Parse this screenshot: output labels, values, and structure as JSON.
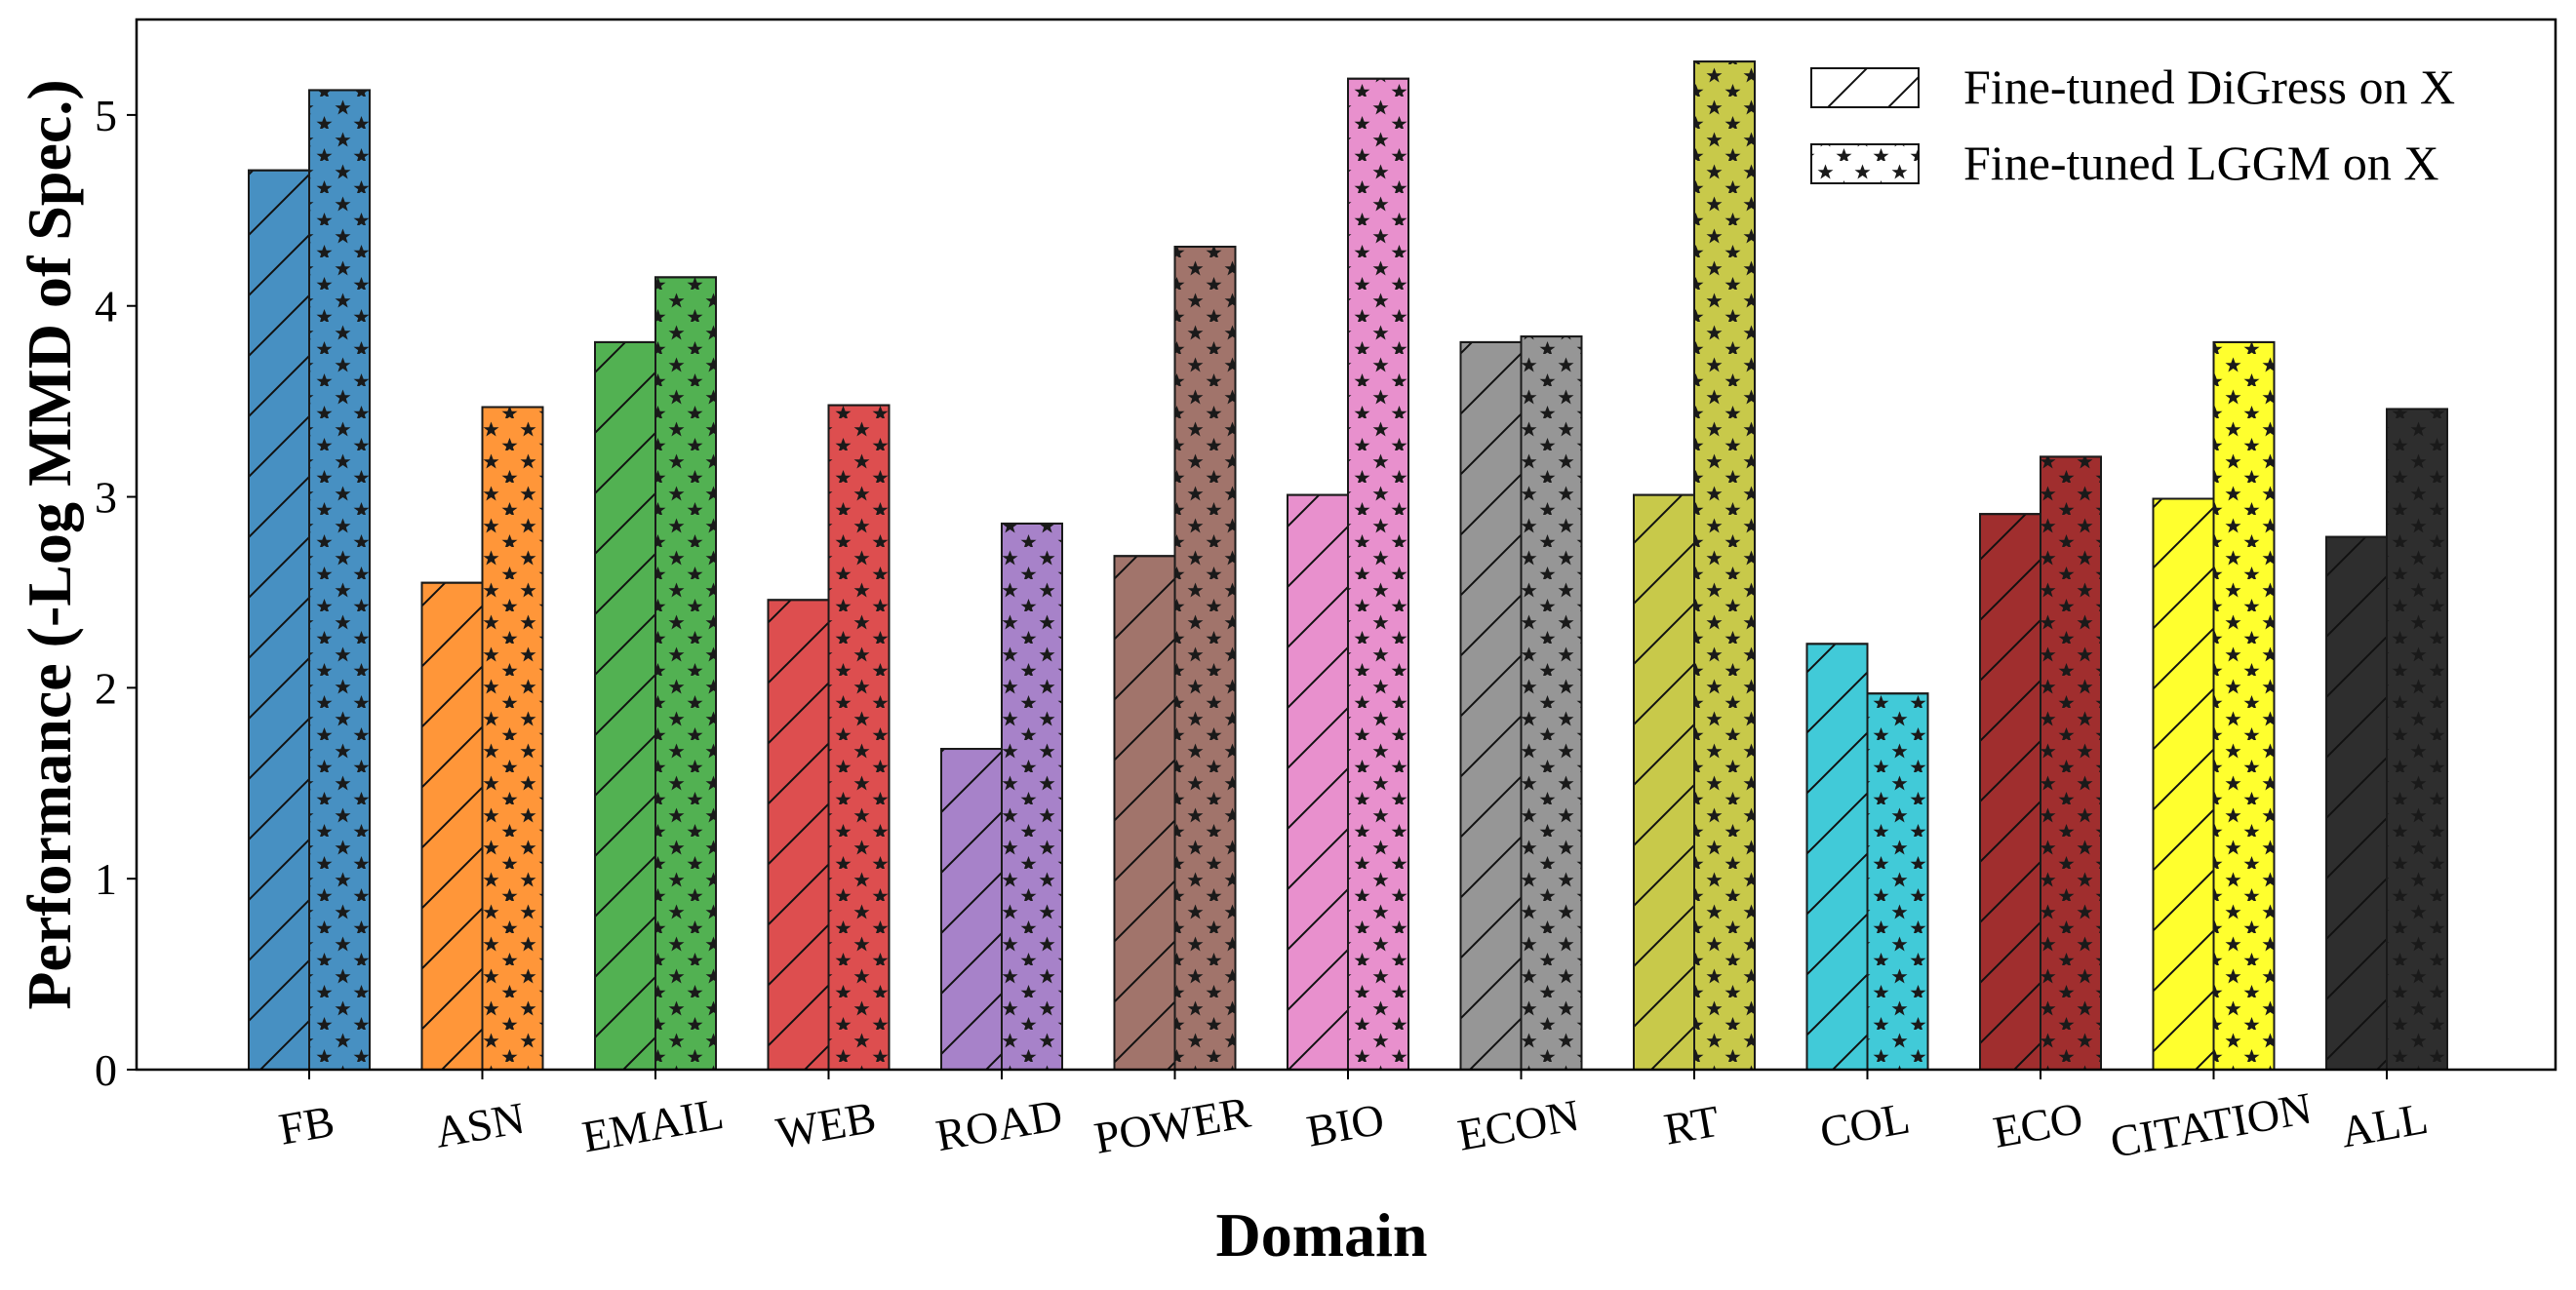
{
  "chart_data": {
    "type": "bar",
    "xlabel": "Domain",
    "ylabel": "Performance (-Log MMD of Spec.)",
    "ylim": [
      0,
      5.5
    ],
    "yticks": [
      "0",
      "1",
      "2",
      "3",
      "4",
      "5"
    ],
    "grid": false,
    "legend_position": "top-right",
    "categories": [
      "FB",
      "ASN",
      "EMAIL",
      "WEB",
      "ROAD",
      "POWER",
      "BIO",
      "ECON",
      "RT",
      "COL",
      "ECO",
      "CITATION",
      "ALL"
    ],
    "colors": [
      "#1f77b4",
      "#ff7f0e",
      "#2ca02c",
      "#d62728",
      "#9467bd",
      "#8c564b",
      "#e377c2",
      "#7f7f7f",
      "#bcbd22",
      "#17becf",
      "#8b0000",
      "#ffff00",
      "#000000"
    ],
    "series": [
      {
        "name": "Fine-tuned DiGress on X",
        "hatch": "diagonal",
        "values": [
          4.71,
          2.55,
          3.81,
          2.46,
          1.68,
          2.69,
          3.01,
          3.81,
          3.01,
          2.23,
          2.91,
          2.99,
          2.79
        ]
      },
      {
        "name": "Fine-tuned LGGM on X",
        "hatch": "stars",
        "values": [
          5.13,
          3.47,
          4.15,
          3.48,
          2.86,
          4.31,
          5.19,
          3.84,
          5.28,
          1.97,
          3.21,
          3.81,
          3.46
        ]
      }
    ]
  }
}
